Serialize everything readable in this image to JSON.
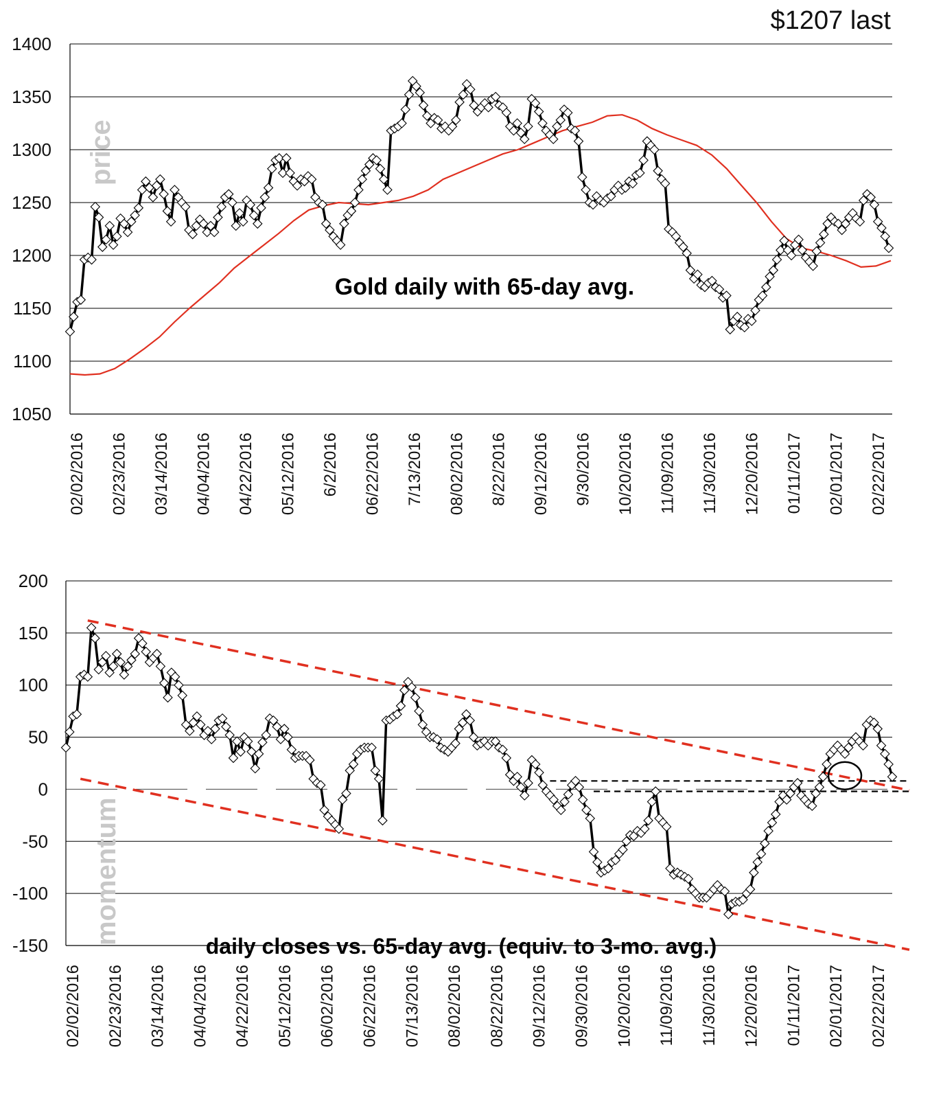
{
  "corner_label": "$1207 last",
  "colors": {
    "price": "#000000",
    "average": "#e03020",
    "trend": "#e03020",
    "grid": "#000000",
    "marker_fill": "#ffffff",
    "watermark": "#c8c8c8"
  },
  "chart_data": [
    {
      "id": "price",
      "type": "line",
      "title": "Gold daily with 65-day avg.",
      "watermark": "price",
      "ylim": [
        1050,
        1400
      ],
      "yticks": [
        "1050",
        "1100",
        "1150",
        "1200",
        "1250",
        "1300",
        "1350",
        "1400"
      ],
      "xticks": [
        "02/02/2016",
        "02/23/2016",
        "03/14/2016",
        "04/04/2016",
        "04/22/2016",
        "05/12/2016",
        "6/2/2016",
        "06/22/2016",
        "7/13/2016",
        "08/02/2016",
        "8/22/2016",
        "09/12/2016",
        "9/30/2016",
        "10/20/2016",
        "11/09/2016",
        "11/30/2016",
        "12/20/2016",
        "01/11/2017",
        "02/01/2017",
        "02/22/2017"
      ],
      "grid": true,
      "series": [
        {
          "kind": "markers",
          "values": [
            1128,
            1142,
            1156,
            1158,
            1196,
            1198,
            1196,
            1246,
            1236,
            1208,
            1215,
            1228,
            1210,
            1218,
            1235,
            1230,
            1222,
            1232,
            1238,
            1245,
            1262,
            1270,
            1264,
            1255,
            1266,
            1272,
            1258,
            1242,
            1232,
            1262,
            1255,
            1250,
            1246,
            1224,
            1220,
            1228,
            1234,
            1230,
            1222,
            1228,
            1222,
            1236,
            1246,
            1255,
            1258,
            1250,
            1228,
            1240,
            1232,
            1252,
            1248,
            1238,
            1230,
            1245,
            1255,
            1264,
            1282,
            1290,
            1292,
            1278,
            1292,
            1278,
            1270,
            1266,
            1272,
            1270,
            1275,
            1272,
            1255,
            1250,
            1248,
            1230,
            1224,
            1218,
            1214,
            1210,
            1230,
            1238,
            1242,
            1250,
            1262,
            1272,
            1280,
            1286,
            1292,
            1290,
            1282,
            1272,
            1262,
            1318,
            1320,
            1322,
            1325,
            1338,
            1352,
            1365,
            1360,
            1354,
            1342,
            1332,
            1325,
            1330,
            1328,
            1320,
            1322,
            1318,
            1322,
            1328,
            1345,
            1352,
            1362,
            1357,
            1342,
            1336,
            1340,
            1344,
            1340,
            1348,
            1350,
            1342,
            1340,
            1335,
            1322,
            1318,
            1325,
            1316,
            1310,
            1322,
            1348,
            1344,
            1336,
            1325,
            1318,
            1314,
            1310,
            1322,
            1328,
            1338,
            1335,
            1320,
            1318,
            1308,
            1274,
            1262,
            1250,
            1248,
            1256,
            1252,
            1250,
            1254,
            1256,
            1262,
            1266,
            1262,
            1264,
            1270,
            1268,
            1276,
            1278,
            1290,
            1308,
            1304,
            1300,
            1280,
            1272,
            1268,
            1225,
            1222,
            1218,
            1212,
            1208,
            1202,
            1186,
            1178,
            1182,
            1172,
            1170,
            1174,
            1176,
            1170,
            1168,
            1160,
            1162,
            1130,
            1138,
            1142,
            1134,
            1132,
            1140,
            1138,
            1148,
            1158,
            1162,
            1170,
            1180,
            1186,
            1196,
            1205,
            1214,
            1205,
            1200,
            1210,
            1215,
            1205,
            1198,
            1194,
            1190,
            1204,
            1212,
            1220,
            1230,
            1236,
            1232,
            1230,
            1224,
            1230,
            1236,
            1240,
            1235,
            1232,
            1252,
            1258,
            1255,
            1248,
            1232,
            1226,
            1218,
            1207
          ]
        },
        {
          "kind": "line",
          "name": "65-day avg.",
          "values": [
            1088,
            1087,
            1088,
            1093,
            1102,
            1112,
            1123,
            1137,
            1150,
            1162,
            1174,
            1188,
            1199,
            1210,
            1221,
            1233,
            1243,
            1247,
            1250,
            1249,
            1248,
            1250,
            1252,
            1256,
            1262,
            1272,
            1278,
            1284,
            1290,
            1296,
            1300,
            1306,
            1312,
            1318,
            1322,
            1326,
            1332,
            1333,
            1328,
            1320,
            1314,
            1309,
            1304,
            1295,
            1282,
            1266,
            1250,
            1232,
            1216,
            1207,
            1204,
            1200,
            1195,
            1189,
            1190,
            1195
          ]
        }
      ]
    },
    {
      "id": "momentum",
      "type": "line",
      "title": "daily closes vs. 65-day avg. (equiv. to 3-mo. avg.)",
      "watermark": "momentum",
      "ylim": [
        -150,
        200
      ],
      "yticks": [
        "-150",
        "-100",
        "-50",
        "0",
        "50",
        "100",
        "150",
        "200"
      ],
      "xticks": [
        "02/02/2016",
        "02/23/2016",
        "03/14/2016",
        "04/04/2016",
        "04/22/2016",
        "05/12/2016",
        "06/02/2016",
        "06/22/2016",
        "07/13/2016",
        "08/02/2016",
        "08/22/2016",
        "09/12/2016",
        "09/30/2016",
        "10/20/2016",
        "11/09/2016",
        "11/30/2016",
        "12/20/2016",
        "01/11/2017",
        "02/01/2017",
        "02/22/2017"
      ],
      "grid": true,
      "series": [
        {
          "kind": "markers",
          "values": [
            40,
            55,
            70,
            72,
            108,
            110,
            108,
            155,
            145,
            115,
            122,
            128,
            112,
            118,
            130,
            122,
            110,
            118,
            124,
            130,
            145,
            140,
            132,
            122,
            126,
            130,
            118,
            102,
            88,
            112,
            108,
            100,
            90,
            62,
            56,
            64,
            70,
            62,
            52,
            56,
            48,
            58,
            66,
            68,
            60,
            52,
            30,
            46,
            36,
            50,
            46,
            36,
            20,
            34,
            45,
            52,
            68,
            66,
            60,
            48,
            58,
            50,
            38,
            30,
            32,
            32,
            32,
            28,
            10,
            6,
            4,
            -20,
            -26,
            -30,
            -34,
            -38,
            -10,
            -4,
            18,
            24,
            34,
            38,
            40,
            40,
            40,
            18,
            10,
            -30,
            66,
            67,
            70,
            72,
            80,
            95,
            103,
            98,
            88,
            75,
            62,
            55,
            50,
            50,
            48,
            40,
            38,
            36,
            40,
            44,
            58,
            64,
            72,
            66,
            50,
            42,
            44,
            46,
            42,
            46,
            46,
            40,
            38,
            30,
            14,
            8,
            12,
            2,
            -6,
            6,
            28,
            24,
            16,
            4,
            -2,
            -6,
            -10,
            -16,
            -20,
            -12,
            -5,
            4,
            8,
            2,
            -10,
            -20,
            -28,
            -60,
            -70,
            -80,
            -78,
            -76,
            -70,
            -68,
            -62,
            -58,
            -50,
            -44,
            -45,
            -40,
            -42,
            -38,
            -30,
            -12,
            -2,
            -28,
            -32,
            -36,
            -76,
            -82,
            -80,
            -82,
            -84,
            -86,
            -96,
            -100,
            -104,
            -104,
            -104,
            -100,
            -96,
            -92,
            -96,
            -98,
            -120,
            -110,
            -108,
            -108,
            -106,
            -100,
            -96,
            -80,
            -70,
            -62,
            -52,
            -40,
            -32,
            -24,
            -12,
            -6,
            -10,
            -4,
            2,
            6,
            -6,
            -10,
            -14,
            -16,
            -4,
            2,
            12,
            24,
            34,
            38,
            42,
            38,
            34,
            40,
            46,
            50,
            46,
            42,
            62,
            66,
            64,
            58,
            42,
            34,
            24,
            12
          ]
        }
      ],
      "trendlines": [
        {
          "name": "upper",
          "style": "dashed",
          "color": "#e03020",
          "from": [
            6,
            162
          ],
          "to": [
            240,
            -7
          ]
        },
        {
          "name": "lower",
          "style": "dashed",
          "color": "#e03020",
          "from": [
            4,
            10
          ],
          "to": [
            240,
            -160
          ]
        }
      ],
      "reference_lines": [
        {
          "style": "dashed",
          "color": "#000000",
          "from_index": 133,
          "to_index": 236,
          "from_value": 8,
          "to_value": 8
        },
        {
          "style": "dashed",
          "color": "#000000",
          "from_index": 145,
          "to_index": 240,
          "from_value": -2,
          "to_value": -2
        }
      ],
      "highlight_circle_at": {
        "x_index": 214,
        "y": 13
      }
    }
  ]
}
